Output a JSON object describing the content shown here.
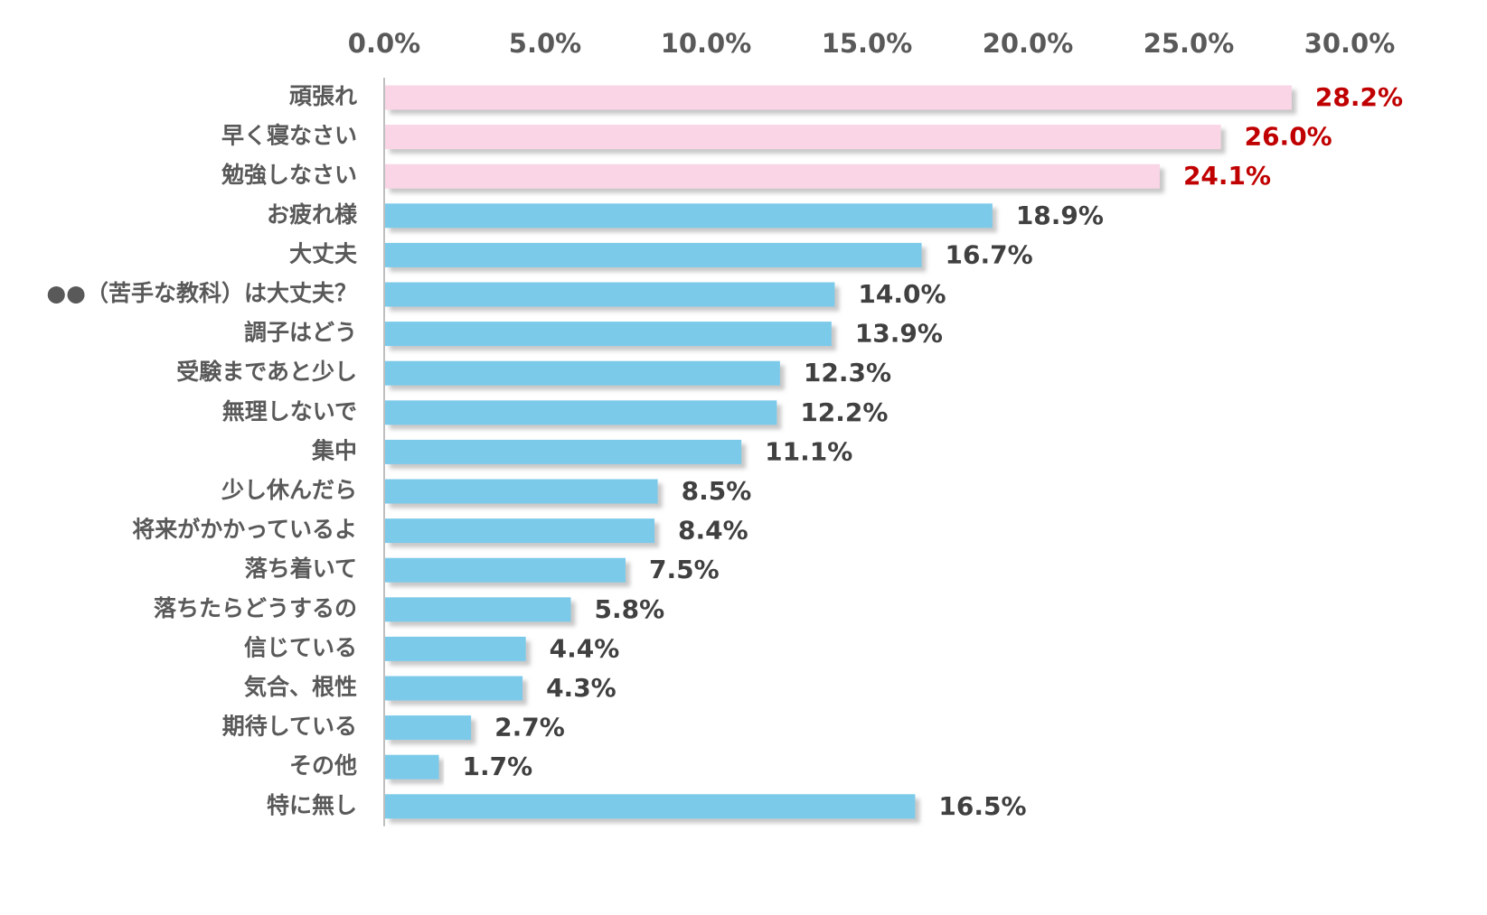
{
  "chart_data": {
    "type": "bar",
    "orientation": "horizontal",
    "title": "",
    "xlabel": "",
    "ylabel": "",
    "xlim": [
      0,
      30
    ],
    "x_ticks": [
      "0.0%",
      "5.0%",
      "10.0%",
      "15.0%",
      "20.0%",
      "25.0%",
      "30.0%"
    ],
    "x_axis_position": "top",
    "grid": false,
    "legend": "none",
    "categories": [
      "頑張れ",
      "早く寝なさい",
      "勉強しなさい",
      "お疲れ様",
      "大丈夫",
      "●●（苦手な教科）は大丈夫？",
      "調子はどう",
      "受験まであと少し",
      "無理しないで",
      "集中",
      "少し休んだら",
      "将来がかかっているよ",
      "落ち着いて",
      "落ちたらどうするの",
      "信じている",
      "気合、根性",
      "期待している",
      "その他",
      "特に無し"
    ],
    "values": [
      28.2,
      26.0,
      24.1,
      18.9,
      16.7,
      14.0,
      13.9,
      12.3,
      12.2,
      11.1,
      8.5,
      8.4,
      7.5,
      5.8,
      4.4,
      4.3,
      2.7,
      1.7,
      16.5
    ],
    "value_labels": [
      "28.2%",
      "26.0%",
      "24.1%",
      "18.9%",
      "16.7%",
      "14.0%",
      "13.9%",
      "12.3%",
      "12.2%",
      "11.1%",
      "8.5%",
      "8.4%",
      "7.5%",
      "5.8%",
      "4.4%",
      "4.3%",
      "2.7%",
      "1.7%",
      "16.5%"
    ],
    "highlighted_count": 3,
    "colors": {
      "highlight_bar": "#f9d5e5",
      "normal_bar": "#7ccaea",
      "highlight_label": "#c00000",
      "normal_label": "#404040",
      "axis_line": "#bfbfbf",
      "bar_shadow": "#bfbfbf"
    }
  }
}
